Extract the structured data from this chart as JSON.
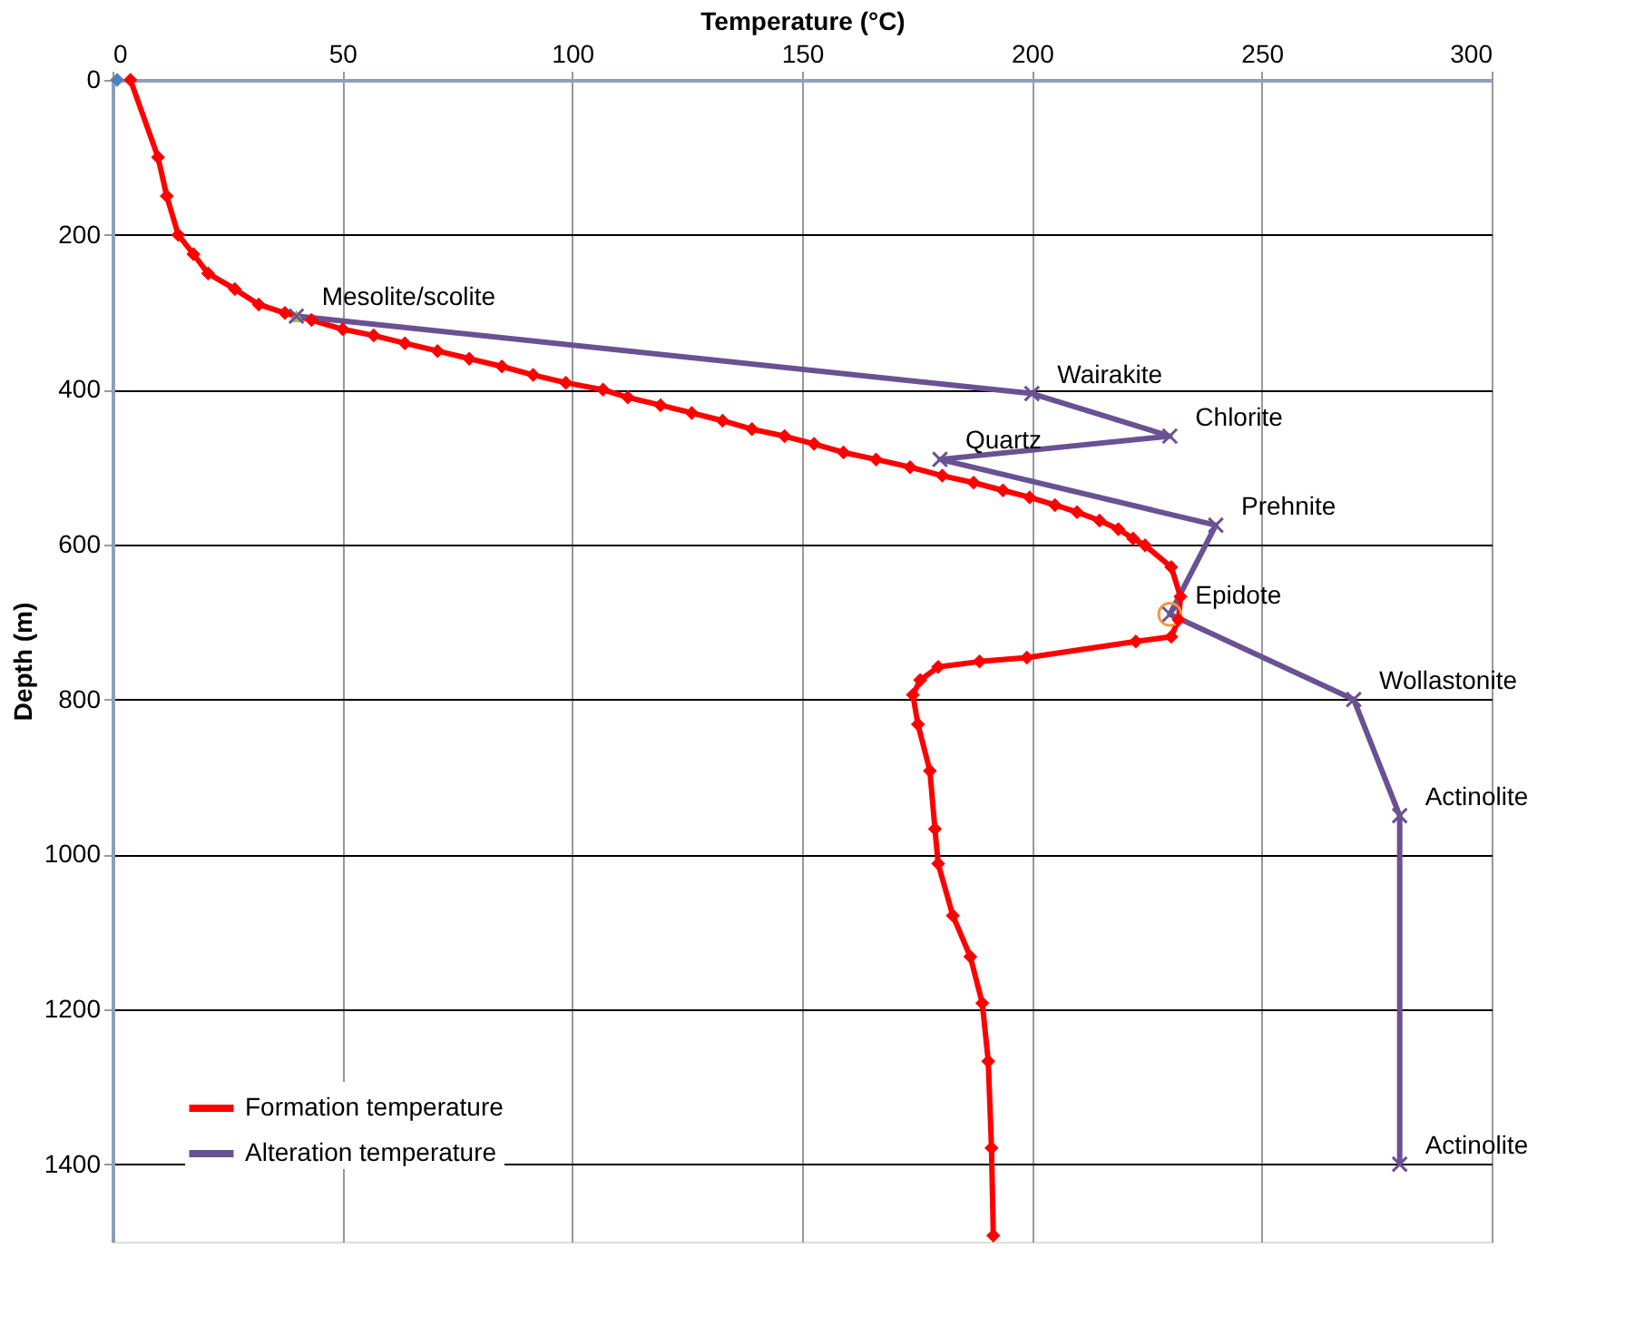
{
  "chart_data": {
    "type": "line",
    "xlabel": "Temperature (°C)",
    "ylabel": "Depth (m)",
    "xlim": [
      0,
      300
    ],
    "xticks": [
      0,
      50,
      100,
      150,
      200,
      250,
      300
    ],
    "ylim": [
      1500,
      0
    ],
    "yticks": [
      0,
      200,
      400,
      600,
      800,
      1000,
      1200,
      1400
    ],
    "grid": true,
    "legend": "bottom left",
    "series": [
      {
        "name": "Formation temperature",
        "color": "#ff0000",
        "marker": "diamond",
        "x": [
          3.9,
          9.9,
          11.8,
          14.3,
          17.6,
          20.8,
          26.6,
          31.8,
          37.5,
          43.3,
          50.1,
          56.8,
          63.6,
          70.7,
          77.6,
          84.7,
          91.5,
          98.6,
          106.7,
          112.1,
          119.2,
          126,
          132.7,
          139.1,
          146.2,
          152.6,
          159,
          166.1,
          173.5,
          180.5,
          187.3,
          193.7,
          199.5,
          205,
          209.8,
          214.7,
          218.8,
          222,
          224.6,
          230.3,
          232.3,
          231.9,
          230.3,
          222.6,
          198.9,
          188.6,
          179.6,
          175.7,
          174.1,
          175.2,
          177.8,
          178.9,
          179.6,
          182.8,
          186.6,
          189.2,
          190.5,
          191.2,
          191.6
        ],
        "values": [
          0,
          100,
          150,
          200,
          225,
          250,
          270,
          290,
          301,
          310,
          322,
          330,
          340,
          350,
          360,
          370,
          381,
          391,
          400,
          410,
          420,
          430,
          440,
          451,
          460,
          470,
          481,
          490,
          500,
          511,
          520,
          530,
          539,
          549,
          558,
          569,
          580,
          592,
          601,
          629,
          667,
          697,
          719,
          725,
          746,
          751,
          758,
          775,
          794,
          832,
          892,
          967,
          1012,
          1079,
          1132,
          1192,
          1267,
          1379,
          1492
        ]
      },
      {
        "name": "Alteration temperature",
        "color": "#6a5193",
        "marker": "cross",
        "x": [
          40,
          200,
          230,
          180,
          240,
          230,
          270,
          280,
          280
        ],
        "values": [
          305,
          405,
          460,
          490,
          575,
          690,
          800,
          950,
          1400
        ]
      },
      {
        "type": "scatter",
        "color": "#4f81bd",
        "marker": "diamond",
        "x": [
          1
        ],
        "values": [
          0
        ]
      },
      {
        "type": "scatter",
        "color": "#9bbb59",
        "marker": "triangle",
        "x": [
          40
        ],
        "values": [
          305
        ]
      },
      {
        "type": "scatter",
        "color": "#f79646",
        "marker": "circle",
        "x": [
          230
        ],
        "values": [
          690
        ]
      }
    ],
    "annotations": [
      {
        "text": "Mesolite/scolite",
        "x": 40,
        "y": 305
      },
      {
        "text": "Wairakite",
        "x": 200,
        "y": 405
      },
      {
        "text": "Chlorite",
        "x": 230,
        "y": 460
      },
      {
        "text": "Quartz",
        "x": 180,
        "y": 490
      },
      {
        "text": "Prehnite",
        "x": 240,
        "y": 575
      },
      {
        "text": "Epidote",
        "x": 230,
        "y": 690
      },
      {
        "text": "Wollastonite",
        "x": 270,
        "y": 800
      },
      {
        "text": "Actinolite",
        "x": 280,
        "y": 950
      },
      {
        "text": "Actinolite",
        "x": 280,
        "y": 1400
      }
    ]
  }
}
